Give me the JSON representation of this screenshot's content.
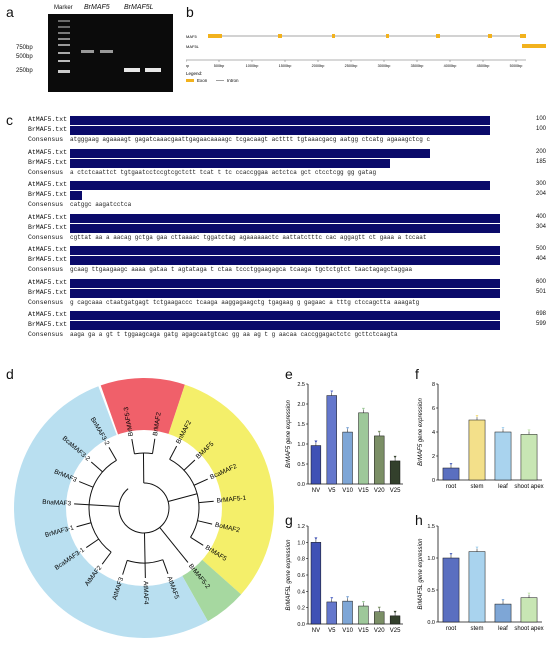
{
  "panels": {
    "a": "a",
    "b": "b",
    "c": "c",
    "d": "d",
    "e": "e",
    "f": "f",
    "g": "g",
    "h": "h"
  },
  "gel": {
    "headers": [
      "Marker",
      "BrMAF5",
      "BrMAF5L"
    ],
    "markers": [
      "750bp",
      "500bp",
      "250bp"
    ]
  },
  "gene_structure": {
    "genes": [
      "MAF5",
      "MAF5L"
    ],
    "ticks": [
      "0bp",
      "500bp",
      "1000bp",
      "1500bp",
      "2000bp",
      "2500bp",
      "3000bp",
      "3500bp",
      "4000bp",
      "4500bp",
      "5000bp"
    ],
    "legend_title": "Legend:",
    "legend_items": [
      "Exon",
      "Intron"
    ]
  },
  "alignment": {
    "names": [
      "AtMAF5.txt",
      "BrMAF5.txt",
      "Consensus"
    ],
    "blocks": [
      {
        "nums": [
          "100",
          "100"
        ],
        "cons": "atgggaag agaaaagt gagatcaaacgaattgagaacaaaagc tcgacaagt actttt tgtaaacgacg aatgg ctcatg agaaagctcg c"
      },
      {
        "nums": [
          "200",
          "185"
        ],
        "cons": "a ctctcaattct tgtgaatcctccgtcgctctt tcat t tc ccaccggaa actctca gct ctcctcgg gg gatag"
      },
      {
        "nums": [
          "300",
          "204"
        ],
        "cons": "catggc aagatcctca"
      },
      {
        "nums": [
          "400",
          "304"
        ],
        "cons": "cgttat aa a aacag gctga gaa cttaaaac  tggatctag agaaaaaactc  aattatctttc cac aggagtt ct gaaa a tccaat"
      },
      {
        "nums": [
          "500",
          "404"
        ],
        "cons": "gcaag ttgaagaagc aaaa gataa t agtataga t ctaa  tccctggaagagca  tcaaga tgctctgtct taactagagctaggaa"
      },
      {
        "nums": [
          "600",
          "501"
        ],
        "cons": "g cagcaaa ctaatgatgagt tctgaagaccc tcaaga aaggagaagctg tgagaag g gagaac a  tttg  ctccagctta aaagatg"
      },
      {
        "nums": [
          "698",
          "599"
        ],
        "cons": "aaga ga a gt t tggaagcaga gatg agagcaatgtcac gg aa ag t g aacaa caccggagactctc gcttctcaagta"
      }
    ]
  },
  "tree": {
    "leaves": [
      "BrMAF5-3",
      "BrMAF2",
      "BnMAF2",
      "BMAF5",
      "BcaMAF2",
      "BrMAF5-1",
      "BoMAF2",
      "BrMAF5",
      "BrMAF5-2",
      "AtMAF5",
      "AtMAF4",
      "AtMAF3",
      "AtMAF2",
      "BcaMAF3-1",
      "BrMAF3-1",
      "BnaMAF3",
      "BrMAF3",
      "BcaMAF3-2",
      "BnMAF3-2"
    ],
    "colors": {
      "red": "#f0606a",
      "yellow": "#f4ef6a",
      "green": "#a6d8a0",
      "blue": "#b9dff0"
    }
  },
  "charts": {
    "e": {
      "ylabel": "BrMAF5 gene expression",
      "categories": [
        "NV",
        "V5",
        "V10",
        "V15",
        "V20",
        "V25"
      ],
      "values": [
        1.0,
        2.3,
        1.35,
        1.85,
        1.25,
        0.6
      ],
      "ticks": [
        "0.0",
        "0.5",
        "1.0",
        "1.5",
        "2.0",
        "2.5"
      ],
      "ylim": [
        0,
        2.6
      ],
      "colors": [
        "#3f51b5",
        "#6477cc",
        "#7ea6d6",
        "#9ec89a",
        "#7b8f66",
        "#33402c"
      ]
    },
    "f": {
      "ylabel": "BrMAF5 gene expression",
      "categories": [
        "root",
        "stem",
        "leaf",
        "shoot apex"
      ],
      "values": [
        1.0,
        5.0,
        4.0,
        3.8
      ],
      "ticks": [
        "0",
        "2",
        "4",
        "6",
        "8"
      ],
      "ylim": [
        0,
        8
      ],
      "colors": [
        "#5a6fc0",
        "#f3e08a",
        "#a9d3ee",
        "#c8e6b4"
      ]
    },
    "g": {
      "ylabel": "BrMAF5L gene expression",
      "categories": [
        "NV",
        "V5",
        "V10",
        "V15",
        "V20",
        "V25"
      ],
      "values": [
        1.0,
        0.27,
        0.28,
        0.22,
        0.15,
        0.1
      ],
      "ticks": [
        "0.0",
        "0.2",
        "0.4",
        "0.6",
        "0.8",
        "1.0",
        "1.2"
      ],
      "ylim": [
        0,
        1.2
      ],
      "colors": [
        "#3f51b5",
        "#6477cc",
        "#7ea6d6",
        "#9ec89a",
        "#7b8f66",
        "#33402c"
      ]
    },
    "h": {
      "ylabel": "BrMAF5L gene expression",
      "categories": [
        "root",
        "stem",
        "leaf",
        "shoot apex"
      ],
      "values": [
        1.0,
        1.1,
        0.28,
        0.38
      ],
      "ticks": [
        "0.0",
        "0.5",
        "1.0",
        "1.5"
      ],
      "ylim": [
        0,
        1.5
      ],
      "colors": [
        "#5a6fc0",
        "#a9d3ee",
        "#7ea6d6",
        "#c8e6b4"
      ]
    }
  },
  "chart_data": [
    {
      "type": "bar",
      "categories": [
        "NV",
        "V5",
        "V10",
        "V15",
        "V20",
        "V25"
      ],
      "values": [
        1.0,
        2.3,
        1.35,
        1.85,
        1.25,
        0.6
      ],
      "ylabel": "BrMAF5 gene expression",
      "ylim": [
        0,
        2.6
      ]
    },
    {
      "type": "bar",
      "categories": [
        "root",
        "stem",
        "leaf",
        "shoot apex"
      ],
      "values": [
        1.0,
        5.0,
        4.0,
        3.8
      ],
      "ylabel": "BrMAF5 gene expression",
      "ylim": [
        0,
        8
      ]
    },
    {
      "type": "bar",
      "categories": [
        "NV",
        "V5",
        "V10",
        "V15",
        "V20",
        "V25"
      ],
      "values": [
        1.0,
        0.27,
        0.28,
        0.22,
        0.15,
        0.1
      ],
      "ylabel": "BrMAF5L gene expression",
      "ylim": [
        0,
        1.2
      ]
    },
    {
      "type": "bar",
      "categories": [
        "root",
        "stem",
        "leaf",
        "shoot apex"
      ],
      "values": [
        1.0,
        1.1,
        0.28,
        0.38
      ],
      "ylabel": "BrMAF5L gene expression",
      "ylim": [
        0,
        1.5
      ]
    }
  ]
}
